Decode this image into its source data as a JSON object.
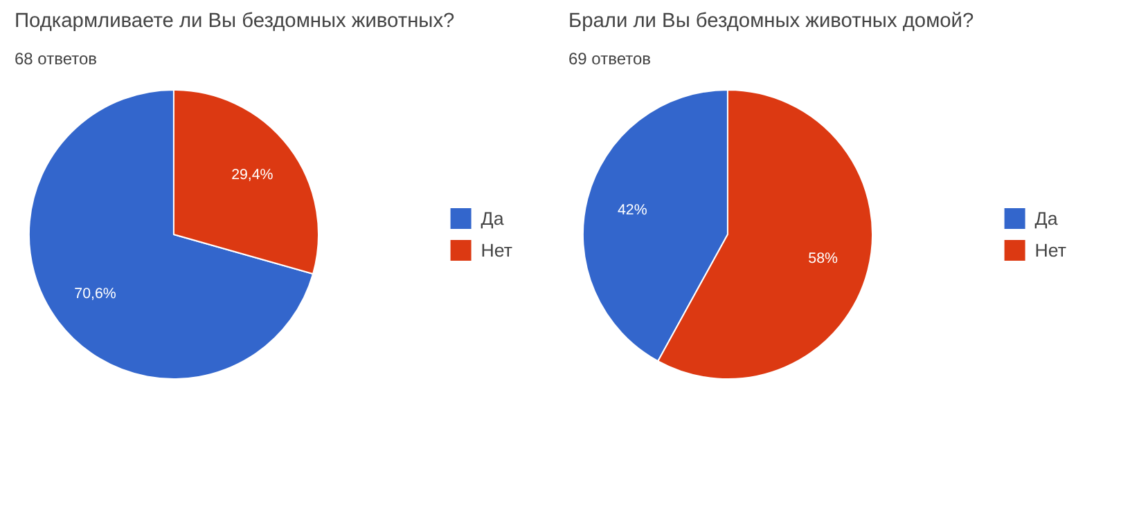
{
  "chart_data": [
    {
      "type": "pie",
      "title": "Подкармливаете ли Вы бездомных животных?",
      "subtitle": "68 ответов",
      "categories": [
        "Да",
        "Нет"
      ],
      "values": [
        70.6,
        29.4
      ],
      "colors": [
        "#3366cc",
        "#dc3912"
      ],
      "value_labels": [
        "70,6%",
        "29,4%"
      ],
      "legend": "right"
    },
    {
      "type": "pie",
      "title": "Брали ли Вы бездомных животных домой?",
      "subtitle": "69 ответов",
      "categories": [
        "Да",
        "Нет"
      ],
      "values": [
        42,
        58
      ],
      "colors": [
        "#3366cc",
        "#dc3912"
      ],
      "value_labels": [
        "42%",
        "58%"
      ],
      "legend": "right"
    }
  ]
}
